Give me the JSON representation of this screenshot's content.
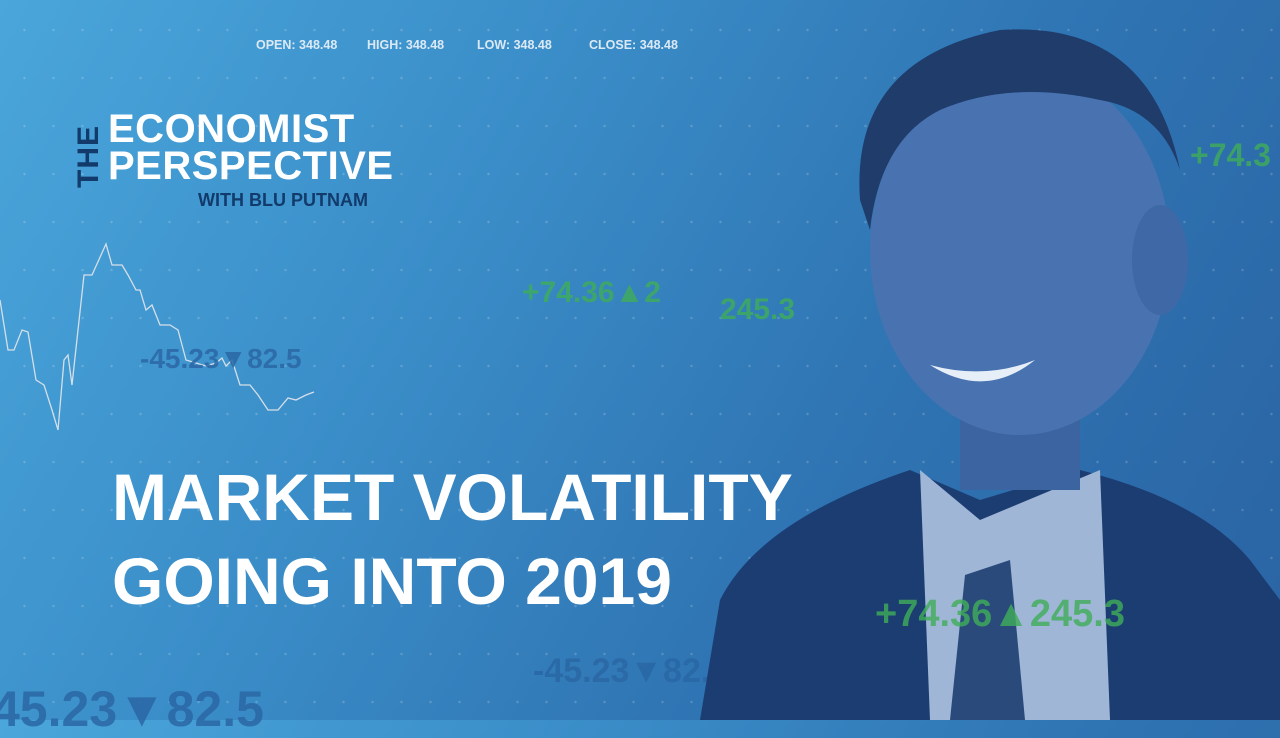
{
  "ticker_header": {
    "open": "OPEN: 348.48",
    "high": "HIGH: 348.48",
    "low": "LOW: 348.48",
    "close": "CLOSE: 348.48"
  },
  "logo": {
    "the": "THE",
    "line1": "ECONOMIST",
    "line2": "PERSPECTIVE",
    "subtitle": "WITH BLU PUTNAM"
  },
  "ticker_overlays": [
    {
      "text": "+74.36▲2",
      "color": "#3fae58"
    },
    {
      "text": "245.3",
      "color": "#3fae58"
    },
    {
      "text": "-45.23▼82.5",
      "color": "#2a67a5"
    },
    {
      "text": "+74.36▲245.3",
      "color": "#3fae58"
    },
    {
      "text": "-45.23▼82.5",
      "color": "#2a67a5"
    },
    {
      "text": "45.23▼82.5",
      "color": "#2a67a5"
    },
    {
      "text": "+74.3",
      "color": "#3fae58"
    }
  ],
  "headline": {
    "line1": "MARKET VOLATILITY",
    "line2": "GOING INTO 2019"
  },
  "colors": {
    "brand_dark": "#123a6b",
    "background": "#3a8dc8",
    "up": "#3fae58",
    "down": "#2a67a5"
  }
}
